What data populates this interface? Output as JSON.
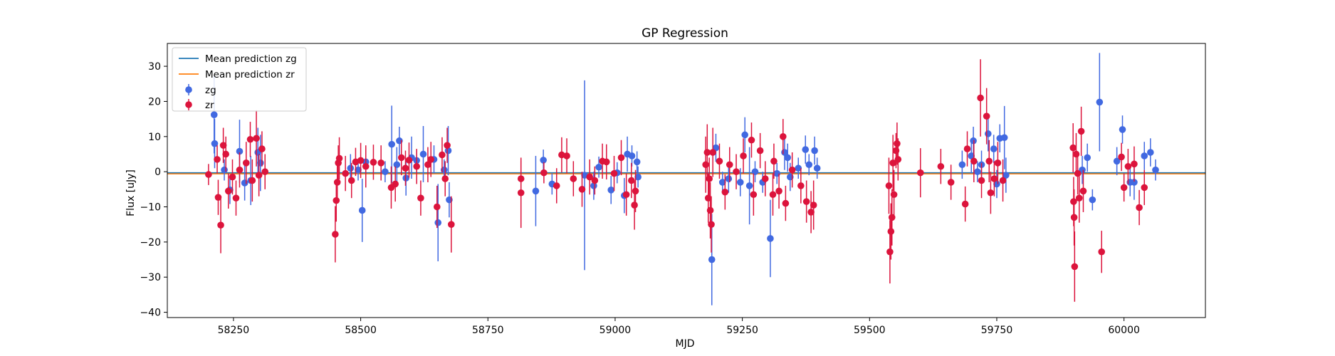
{
  "chart_data": {
    "type": "scatter",
    "title": "GP Regression",
    "xlabel": "MJD",
    "ylabel": "Flux [uJy]",
    "xlim": [
      58120,
      60160
    ],
    "ylim": [
      -41.5,
      36.5
    ],
    "x_ticks": [
      58250,
      58500,
      58750,
      59000,
      59250,
      59500,
      59750,
      60000
    ],
    "y_ticks": [
      -40,
      -30,
      -20,
      -10,
      0,
      10,
      20,
      30
    ],
    "legend_position": "upper left",
    "mean_predictions": [
      {
        "name": "Mean prediction zg",
        "color": "#1f77b4",
        "x": [
          58120,
          60160
        ],
        "y": [
          -0.3,
          -0.3
        ]
      },
      {
        "name": "Mean prediction zr",
        "color": "#ff7f0e",
        "x": [
          58120,
          60160
        ],
        "y": [
          -0.6,
          -0.6
        ]
      }
    ],
    "series": [
      {
        "name": "zg",
        "color": "#4169e1",
        "points": [
          [
            58212,
            16.2,
            11
          ],
          [
            58213,
            8,
            7
          ],
          [
            58232,
            0.5,
            3
          ],
          [
            58243,
            -5.2,
            4
          ],
          [
            58262,
            5.8,
            9
          ],
          [
            58272,
            -3.2,
            5
          ],
          [
            58284,
            -2.5,
            7
          ],
          [
            58298,
            5.5,
            7
          ],
          [
            58303,
            2.5,
            8
          ],
          [
            58480,
            1,
            4
          ],
          [
            58495,
            0.5,
            3
          ],
          [
            58503,
            -11,
            9
          ],
          [
            58510,
            2.8,
            4
          ],
          [
            58548,
            0,
            3
          ],
          [
            58561,
            7.8,
            11
          ],
          [
            58571,
            2,
            5
          ],
          [
            58576,
            8.8,
            4
          ],
          [
            58589,
            -1.8,
            5
          ],
          [
            58600,
            4,
            6
          ],
          [
            58610,
            3.2,
            3
          ],
          [
            58623,
            5,
            8
          ],
          [
            58644,
            3.5,
            4
          ],
          [
            58652,
            -14.5,
            11
          ],
          [
            58664,
            0.5,
            3
          ],
          [
            58672,
            6,
            7
          ],
          [
            58674,
            -8,
            5
          ],
          [
            58844,
            -5.5,
            10
          ],
          [
            58859,
            3.3,
            3
          ],
          [
            58876,
            -3.5,
            3
          ],
          [
            58940,
            -1,
            27
          ],
          [
            58958,
            -4,
            4
          ],
          [
            58968,
            1.3,
            3
          ],
          [
            58992,
            -5.2,
            4
          ],
          [
            59004,
            -0.3,
            3
          ],
          [
            59018,
            -6.8,
            5
          ],
          [
            59024,
            5,
            5
          ],
          [
            59033,
            4.5,
            3
          ],
          [
            59043,
            2.8,
            3
          ],
          [
            59045,
            -1.5,
            3
          ],
          [
            59190,
            -25,
            13
          ],
          [
            59198,
            6.8,
            4
          ],
          [
            59211,
            -3,
            3
          ],
          [
            59223,
            -2,
            4
          ],
          [
            59246,
            -3,
            4
          ],
          [
            59255,
            10.5,
            5
          ],
          [
            59264,
            -4,
            11
          ],
          [
            59275,
            0,
            3
          ],
          [
            59290,
            -3,
            3
          ],
          [
            59305,
            -19,
            11
          ],
          [
            59318,
            -0.5,
            3
          ],
          [
            59333,
            5.5,
            5
          ],
          [
            59339,
            4,
            4
          ],
          [
            59344,
            -1.5,
            4
          ],
          [
            59360,
            1,
            3
          ],
          [
            59374,
            6.3,
            4
          ],
          [
            59381,
            2,
            3
          ],
          [
            59392,
            6,
            4
          ],
          [
            59397,
            1,
            3
          ],
          [
            59682,
            2,
            4
          ],
          [
            59700,
            4.5,
            5
          ],
          [
            59704,
            8.8,
            4
          ],
          [
            59712,
            0,
            3
          ],
          [
            59720,
            2,
            4
          ],
          [
            59733,
            10.8,
            5
          ],
          [
            59744,
            6.5,
            4
          ],
          [
            59750,
            -3.5,
            4
          ],
          [
            59756,
            9.5,
            4
          ],
          [
            59765,
            9.7,
            9
          ],
          [
            59768,
            -1,
            5
          ],
          [
            59918,
            0.5,
            4
          ],
          [
            59928,
            4,
            4
          ],
          [
            59938,
            -8,
            3
          ],
          [
            59952,
            19.8,
            14
          ],
          [
            59986,
            3,
            4
          ],
          [
            59997,
            12,
            4
          ],
          [
            60012,
            -3,
            4
          ],
          [
            60020,
            -3,
            5
          ],
          [
            60040,
            4.5,
            4
          ],
          [
            60052,
            5.5,
            4
          ],
          [
            60062,
            0.5,
            3
          ]
        ]
      },
      {
        "name": "zr",
        "color": "#dc143c",
        "points": [
          [
            58201,
            -0.8,
            3
          ],
          [
            58218,
            3.5,
            4
          ],
          [
            58220,
            -7.3,
            5
          ],
          [
            58225,
            -15.2,
            8
          ],
          [
            58230,
            7.5,
            5
          ],
          [
            58235,
            5,
            5
          ],
          [
            58240,
            -5.5,
            5
          ],
          [
            58248,
            -1.5,
            5
          ],
          [
            58255,
            -7.5,
            5
          ],
          [
            58262,
            0.5,
            5
          ],
          [
            58275,
            2.5,
            6
          ],
          [
            58283,
            9.2,
            5
          ],
          [
            58287,
            -2.5,
            6
          ],
          [
            58295,
            9.5,
            8
          ],
          [
            58300,
            -1,
            6
          ],
          [
            58306,
            6.5,
            5
          ],
          [
            58312,
            0,
            5
          ],
          [
            58450,
            -17.8,
            8
          ],
          [
            58452,
            -8.2,
            6
          ],
          [
            58454,
            -3,
            5
          ],
          [
            58456,
            2.5,
            5
          ],
          [
            58458,
            3.8,
            6
          ],
          [
            58470,
            -0.5,
            5
          ],
          [
            58482,
            -2.5,
            5
          ],
          [
            58490,
            2.8,
            4
          ],
          [
            58500,
            3.2,
            5
          ],
          [
            58510,
            1.5,
            6
          ],
          [
            58525,
            2.7,
            5
          ],
          [
            58540,
            2.5,
            5
          ],
          [
            58560,
            -4.5,
            6
          ],
          [
            58568,
            -3.5,
            5
          ],
          [
            58580,
            4,
            5
          ],
          [
            58588,
            1,
            5
          ],
          [
            58595,
            3.3,
            5
          ],
          [
            58610,
            1.5,
            5
          ],
          [
            58618,
            -7.5,
            5
          ],
          [
            58632,
            2,
            5
          ],
          [
            58638,
            3.5,
            5
          ],
          [
            58650,
            -10,
            6
          ],
          [
            58660,
            4.8,
            5
          ],
          [
            58666,
            -2,
            5
          ],
          [
            58670,
            7.5,
            5
          ],
          [
            58678,
            -15,
            8
          ],
          [
            58815,
            -6,
            10
          ],
          [
            58815,
            -2,
            5
          ],
          [
            58860,
            -0.3,
            3
          ],
          [
            58885,
            -4,
            5
          ],
          [
            58895,
            4.8,
            5
          ],
          [
            58905,
            4.5,
            5
          ],
          [
            58918,
            -2,
            5
          ],
          [
            58935,
            -5,
            5
          ],
          [
            58950,
            -1.5,
            5
          ],
          [
            58960,
            -2.5,
            4
          ],
          [
            58975,
            3,
            5
          ],
          [
            58983,
            2.8,
            5
          ],
          [
            58998,
            -0.5,
            5
          ],
          [
            59012,
            4,
            5
          ],
          [
            59022,
            -6.5,
            6
          ],
          [
            59032,
            -2.5,
            5
          ],
          [
            59038,
            -9.5,
            7
          ],
          [
            59040,
            -5.5,
            6
          ],
          [
            59178,
            2,
            8
          ],
          [
            59181,
            5.5,
            8
          ],
          [
            59183,
            -7.5,
            7
          ],
          [
            59185,
            -2,
            6
          ],
          [
            59187,
            -11,
            8
          ],
          [
            59189,
            -15,
            8
          ],
          [
            59192,
            5.5,
            7
          ],
          [
            59205,
            3,
            5
          ],
          [
            59216,
            -5.8,
            5
          ],
          [
            59225,
            2,
            5
          ],
          [
            59238,
            0,
            5
          ],
          [
            59252,
            4.5,
            5
          ],
          [
            59268,
            9,
            5
          ],
          [
            59272,
            -6.5,
            6
          ],
          [
            59285,
            6,
            5
          ],
          [
            59295,
            -2,
            5
          ],
          [
            59310,
            -6.5,
            6
          ],
          [
            59312,
            3,
            5
          ],
          [
            59322,
            -5.5,
            5
          ],
          [
            59330,
            10,
            5
          ],
          [
            59335,
            -9,
            5
          ],
          [
            59348,
            0.5,
            5
          ],
          [
            59365,
            -4,
            5
          ],
          [
            59376,
            -8.5,
            6
          ],
          [
            59385,
            -11.5,
            6
          ],
          [
            59390,
            -9.5,
            7
          ],
          [
            59538,
            -4,
            8
          ],
          [
            59540,
            -22.8,
            9
          ],
          [
            59542,
            -17,
            8
          ],
          [
            59544,
            -13,
            8
          ],
          [
            59546,
            2.5,
            8
          ],
          [
            59548,
            -6.5,
            7
          ],
          [
            59552,
            6,
            5
          ],
          [
            59554,
            8,
            6
          ],
          [
            59556,
            3.5,
            6
          ],
          [
            59600,
            -0.3,
            7
          ],
          [
            59640,
            1.5,
            5
          ],
          [
            59660,
            -3,
            5
          ],
          [
            59688,
            -9.2,
            5
          ],
          [
            59692,
            6.5,
            5
          ],
          [
            59705,
            3,
            6
          ],
          [
            59718,
            21,
            11
          ],
          [
            59720,
            -2.5,
            5
          ],
          [
            59730,
            15.8,
            8
          ],
          [
            59735,
            3,
            6
          ],
          [
            59738,
            -6,
            6
          ],
          [
            59745,
            -2,
            5
          ],
          [
            59752,
            2.5,
            6
          ],
          [
            59762,
            -2.5,
            6
          ],
          [
            59900,
            6.8,
            7
          ],
          [
            59901,
            -8.5,
            7
          ],
          [
            59902,
            -13,
            8
          ],
          [
            59903,
            -27,
            10
          ],
          [
            59906,
            5,
            6
          ],
          [
            59909,
            -0.5,
            6
          ],
          [
            59912,
            -7.5,
            7
          ],
          [
            59916,
            11.5,
            7
          ],
          [
            59920,
            -5.5,
            6
          ],
          [
            59956,
            -22.8,
            6
          ],
          [
            59995,
            4.2,
            4
          ],
          [
            60000,
            -4.5,
            4
          ],
          [
            60008,
            1.5,
            5
          ],
          [
            60020,
            2.2,
            5
          ],
          [
            60030,
            -10.2,
            5
          ],
          [
            60040,
            -4.5,
            5
          ]
        ]
      }
    ]
  }
}
